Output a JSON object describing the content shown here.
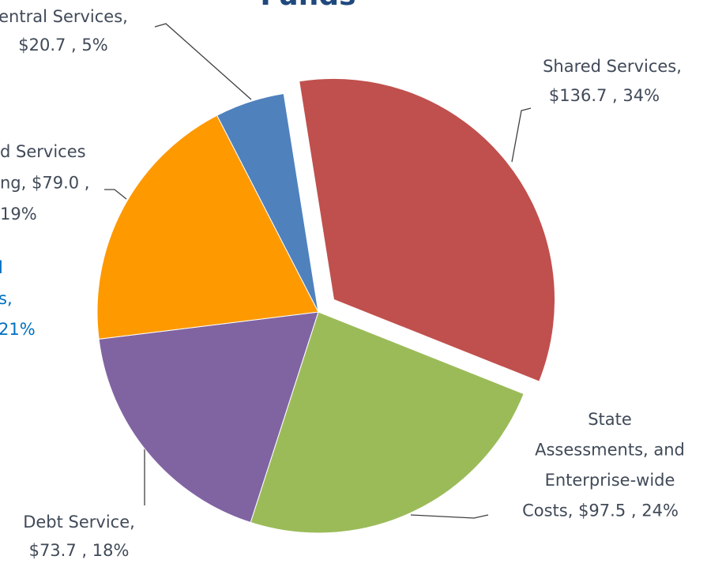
{
  "chart_data": {
    "type": "pie",
    "title": "Funds",
    "labels": [
      [
        "Shared Services,",
        "$136.7 , 34%"
      ],
      [
        "State",
        "Assessments, and",
        "Enterprise-wide",
        "Costs, $97.5 , 24%"
      ],
      [
        "Debt Service,",
        "$73.7 , 18%"
      ],
      [
        "d Services",
        "ng, $79.0 ,",
        "19%"
      ],
      [
        "entral Services,",
        "$20.7 , 5%"
      ]
    ],
    "values": [
      136.7,
      97.5,
      73.7,
      79.0,
      20.7
    ],
    "colors": [
      "#c0504d",
      "#9bbb59",
      "#8064a2",
      "#ff9900",
      "#4f81bd"
    ],
    "annotation": [
      "l",
      "s,",
      "21%"
    ],
    "annotation_color": "#0070c0"
  }
}
